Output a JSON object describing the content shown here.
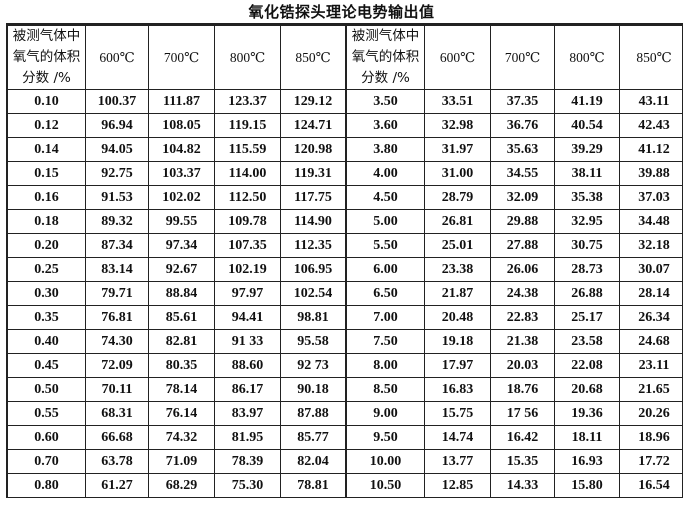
{
  "title": "氧化锆探头理论电势输出值",
  "header": {
    "label_lines": [
      "被测气体中",
      "氧气的体积",
      "分数 /%"
    ],
    "temps": [
      "600℃",
      "700℃",
      "800℃",
      "850℃"
    ]
  },
  "left_rows": [
    [
      "0.10",
      "100.37",
      "111.87",
      "123.37",
      "129.12"
    ],
    [
      "0.12",
      "96.94",
      "108.05",
      "119.15",
      "124.71"
    ],
    [
      "0.14",
      "94.05",
      "104.82",
      "115.59",
      "120.98"
    ],
    [
      "0.15",
      "92.75",
      "103.37",
      "114.00",
      "119.31"
    ],
    [
      "0.16",
      "91.53",
      "102.02",
      "112.50",
      "117.75"
    ],
    [
      "0.18",
      "89.32",
      "99.55",
      "109.78",
      "114.90"
    ],
    [
      "0.20",
      "87.34",
      "97.34",
      "107.35",
      "112.35"
    ],
    [
      "0.25",
      "83.14",
      "92.67",
      "102.19",
      "106.95"
    ],
    [
      "0.30",
      "79.71",
      "88.84",
      "97.97",
      "102.54"
    ],
    [
      "0.35",
      "76.81",
      "85.61",
      "94.41",
      "98.81"
    ],
    [
      "0.40",
      "74.30",
      "82.81",
      "91 33",
      "95.58"
    ],
    [
      "0.45",
      "72.09",
      "80.35",
      "88.60",
      "92 73"
    ],
    [
      "0.50",
      "70.11",
      "78.14",
      "86.17",
      "90.18"
    ],
    [
      "0.55",
      "68.31",
      "76.14",
      "83.97",
      "87.88"
    ],
    [
      "0.60",
      "66.68",
      "74.32",
      "81.95",
      "85.77"
    ],
    [
      "0.70",
      "63.78",
      "71.09",
      "78.39",
      "82.04"
    ],
    [
      "0.80",
      "61.27",
      "68.29",
      "75.30",
      "78.81"
    ]
  ],
  "right_rows": [
    [
      "3.50",
      "33.51",
      "37.35",
      "41.19",
      "43.11"
    ],
    [
      "3.60",
      "32.98",
      "36.76",
      "40.54",
      "42.43"
    ],
    [
      "3.80",
      "31.97",
      "35.63",
      "39.29",
      "41.12"
    ],
    [
      "4.00",
      "31.00",
      "34.55",
      "38.11",
      "39.88"
    ],
    [
      "4.50",
      "28.79",
      "32.09",
      "35.38",
      "37.03"
    ],
    [
      "5.00",
      "26.81",
      "29.88",
      "32.95",
      "34.48"
    ],
    [
      "5.50",
      "25.01",
      "27.88",
      "30.75",
      "32.18"
    ],
    [
      "6.00",
      "23.38",
      "26.06",
      "28.73",
      "30.07"
    ],
    [
      "6.50",
      "21.87",
      "24.38",
      "26.88",
      "28.14"
    ],
    [
      "7.00",
      "20.48",
      "22.83",
      "25.17",
      "26.34"
    ],
    [
      "7.50",
      "19.18",
      "21.38",
      "23.58",
      "24.68"
    ],
    [
      "8.00",
      "17.97",
      "20.03",
      "22.08",
      "23.11"
    ],
    [
      "8.50",
      "16.83",
      "18.76",
      "20.68",
      "21.65"
    ],
    [
      "9.00",
      "15.75",
      "17 56",
      "19.36",
      "20.26"
    ],
    [
      "9.50",
      "14.74",
      "16.42",
      "18.11",
      "18.96"
    ],
    [
      "10.00",
      "13.77",
      "15.35",
      "16.93",
      "17.72"
    ],
    [
      "10.50",
      "12.85",
      "14.33",
      "15.80",
      "16.54"
    ]
  ]
}
